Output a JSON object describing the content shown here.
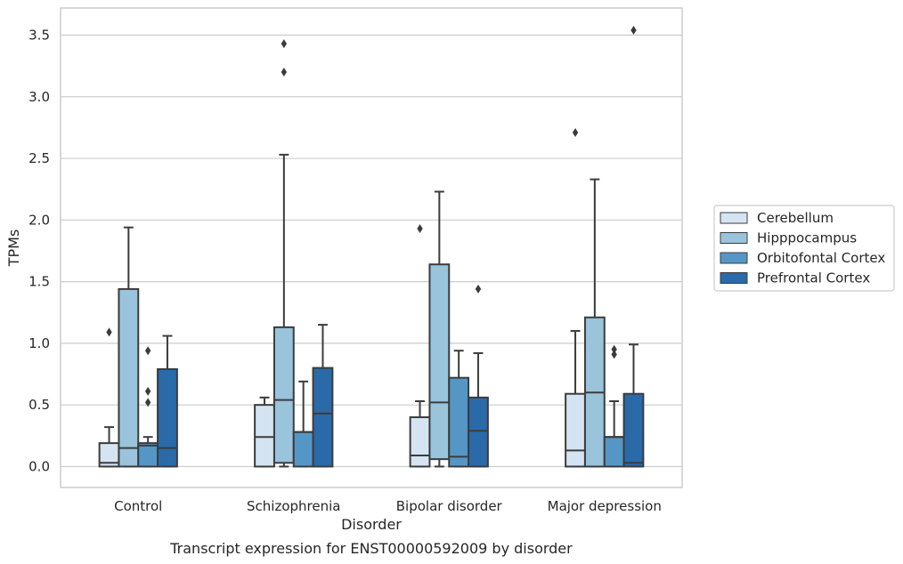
{
  "caption": "Transcript expression for ENST00000592009 by disorder",
  "chart_data": {
    "type": "box",
    "xlabel": "Disorder",
    "ylabel": "TPMs",
    "ylim": [
      -0.17,
      3.72
    ],
    "yticks": [
      "0.0",
      "0.5",
      "1.0",
      "1.5",
      "2.0",
      "2.5",
      "3.0",
      "3.5"
    ],
    "grid": "horizontal",
    "legend_position": "right",
    "categories": [
      "Control",
      "Schizophrenia",
      "Bipolar disorder",
      "Major depression"
    ],
    "series": [
      {
        "name": "Cerebellum",
        "color": "#d5e4f3",
        "boxes": [
          {
            "min": 0.0,
            "q1": 0.0,
            "median": 0.03,
            "q3": 0.19,
            "max": 0.32,
            "outliers": [
              1.09
            ]
          },
          {
            "min": 0.0,
            "q1": 0.0,
            "median": 0.24,
            "q3": 0.5,
            "max": 0.56,
            "outliers": []
          },
          {
            "min": 0.0,
            "q1": 0.0,
            "median": 0.09,
            "q3": 0.4,
            "max": 0.53,
            "outliers": [
              1.93
            ]
          },
          {
            "min": 0.0,
            "q1": 0.0,
            "median": 0.13,
            "q3": 0.59,
            "max": 1.1,
            "outliers": [
              2.71
            ]
          }
        ]
      },
      {
        "name": "Hipppocampus",
        "color": "#9ac3dc",
        "boxes": [
          {
            "min": 0.0,
            "q1": 0.0,
            "median": 0.15,
            "q3": 1.44,
            "max": 1.94,
            "outliers": []
          },
          {
            "min": 0.0,
            "q1": 0.03,
            "median": 0.54,
            "q3": 1.13,
            "max": 2.53,
            "outliers": [
              3.2,
              3.43
            ]
          },
          {
            "min": 0.0,
            "q1": 0.06,
            "median": 0.52,
            "q3": 1.64,
            "max": 2.23,
            "outliers": []
          },
          {
            "min": 0.0,
            "q1": 0.0,
            "median": 0.6,
            "q3": 1.21,
            "max": 2.33,
            "outliers": []
          }
        ]
      },
      {
        "name": "Orbitofontal Cortex",
        "color": "#5497c6",
        "boxes": [
          {
            "min": 0.0,
            "q1": 0.0,
            "median": 0.17,
            "q3": 0.19,
            "max": 0.24,
            "outliers": [
              0.52,
              0.61,
              0.94
            ]
          },
          {
            "min": 0.0,
            "q1": 0.0,
            "median": 0.28,
            "q3": 0.28,
            "max": 0.69,
            "outliers": []
          },
          {
            "min": 0.0,
            "q1": 0.0,
            "median": 0.08,
            "q3": 0.72,
            "max": 0.94,
            "outliers": []
          },
          {
            "min": 0.0,
            "q1": 0.0,
            "median": 0.24,
            "q3": 0.24,
            "max": 0.53,
            "outliers": [
              0.91,
              0.95
            ]
          }
        ]
      },
      {
        "name": "Prefrontal Cortex",
        "color": "#2a6aa9",
        "boxes": [
          {
            "min": 0.0,
            "q1": 0.0,
            "median": 0.15,
            "q3": 0.79,
            "max": 1.06,
            "outliers": []
          },
          {
            "min": 0.0,
            "q1": 0.0,
            "median": 0.43,
            "q3": 0.8,
            "max": 1.15,
            "outliers": []
          },
          {
            "min": 0.0,
            "q1": 0.0,
            "median": 0.29,
            "q3": 0.56,
            "max": 0.92,
            "outliers": [
              1.44
            ]
          },
          {
            "min": 0.0,
            "q1": 0.0,
            "median": 0.03,
            "q3": 0.59,
            "max": 0.99,
            "outliers": [
              3.54
            ]
          }
        ]
      }
    ]
  }
}
